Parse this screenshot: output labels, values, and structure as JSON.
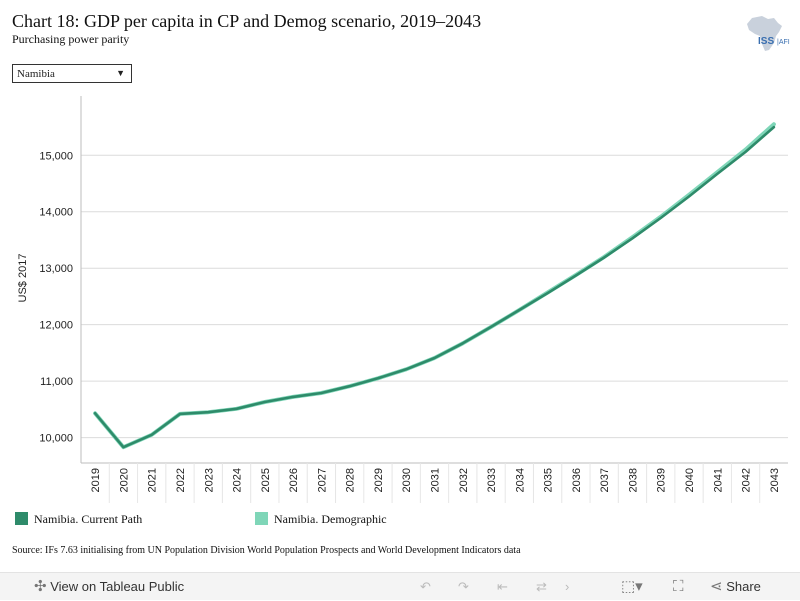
{
  "header": {
    "title": "Chart 18: GDP per capita in CP and Demog scenario, 2019–2043",
    "subtitle": "Purchasing power parity",
    "logo_text": "ISS AFI"
  },
  "filter": {
    "selected": "Namibia"
  },
  "chart_data": {
    "type": "line",
    "title": "Chart 18: GDP per capita in CP and Demog scenario, 2019–2043",
    "subtitle": "Purchasing power parity",
    "xlabel": "",
    "ylabel": "US$ 2017",
    "categories": [
      "2019",
      "2020",
      "2021",
      "2022",
      "2023",
      "2024",
      "2025",
      "2026",
      "2027",
      "2028",
      "2029",
      "2030",
      "2031",
      "2032",
      "2033",
      "2034",
      "2035",
      "2036",
      "2037",
      "2038",
      "2039",
      "2040",
      "2041",
      "2042",
      "2043"
    ],
    "ylim": [
      9550,
      16050
    ],
    "yticks": [
      10000,
      11000,
      12000,
      13000,
      14000,
      15000
    ],
    "ytick_labels": [
      "10,000",
      "11,000",
      "12,000",
      "13,000",
      "14,000",
      "15,000"
    ],
    "grid": true,
    "legend_position": "bottom",
    "series": [
      {
        "name": "Namibia. Current Path",
        "color": "#2e8b6a",
        "values": [
          10430,
          9830,
          10050,
          10420,
          10450,
          10510,
          10630,
          10720,
          10790,
          10910,
          11050,
          11210,
          11410,
          11670,
          11960,
          12260,
          12560,
          12870,
          13190,
          13530,
          13890,
          14270,
          14670,
          15060,
          15500
        ]
      },
      {
        "name": "Namibia. Demographic",
        "color": "#7fd6b8",
        "values": [
          10430,
          9830,
          10050,
          10420,
          10450,
          10510,
          10630,
          10720,
          10790,
          10910,
          11050,
          11210,
          11410,
          11670,
          11960,
          12260,
          12570,
          12880,
          13200,
          13550,
          13910,
          14300,
          14700,
          15100,
          15550
        ]
      }
    ]
  },
  "source": "Source: IFs 7.63 initialising from UN Population Division World Population Prospects and World Development Indicators data",
  "toolbar": {
    "view_label": "View on Tableau Public",
    "share_label": "Share"
  }
}
